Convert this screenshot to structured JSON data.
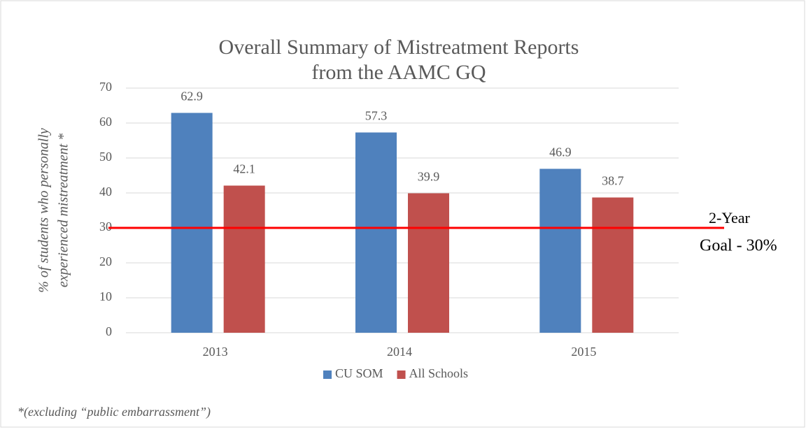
{
  "chart_data": {
    "type": "bar",
    "title": [
      "Overall Summary of Mistreatment Reports",
      "from the AAMC GQ"
    ],
    "y_label": [
      "% of students who personally",
      "experienced mistreatment *"
    ],
    "categories": [
      "2013",
      "2014",
      "2015"
    ],
    "series": [
      {
        "name": "CU SOM",
        "color": "#4f81bd",
        "values": [
          62.9,
          57.3,
          46.9
        ]
      },
      {
        "name": "All Schools",
        "color": "#c0504d",
        "values": [
          42.1,
          39.9,
          38.7
        ]
      }
    ],
    "ylim": [
      0,
      70
    ],
    "yticks": [
      0,
      10,
      20,
      30,
      40,
      50,
      60,
      70
    ],
    "grid": true,
    "legend": "bottom",
    "goal": 30,
    "goal_color": "#ff0000",
    "annotation": [
      "2-Year",
      "Goal - 30%"
    ],
    "footnote": "*(excluding “public embarrassment”)"
  }
}
